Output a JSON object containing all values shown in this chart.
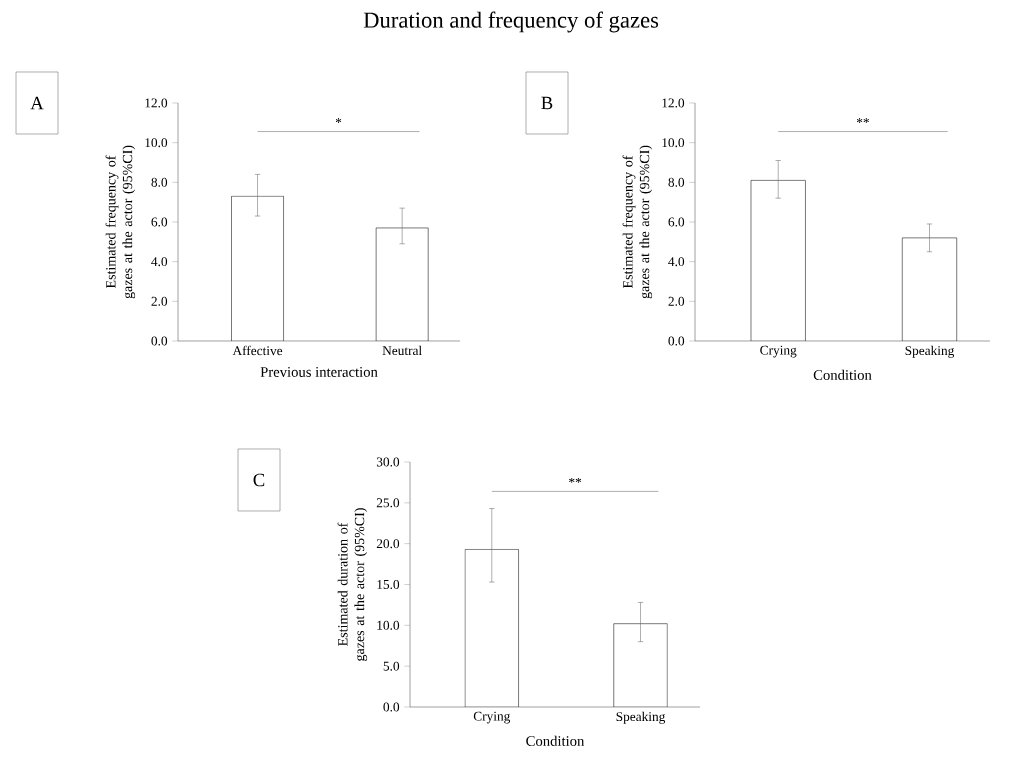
{
  "chart_data": [
    {
      "type": "bar",
      "title": "Duration and frequency of gazes",
      "categories": [
        "Affective",
        "Neutral"
      ],
      "values": [
        7.3,
        5.7
      ],
      "errors": [
        [
          6.3,
          8.4
        ],
        [
          4.9,
          6.7
        ]
      ],
      "color": "#ffffff",
      "xlabel": "Previous interaction",
      "ylabel": "Estimated frequency of gazes at the actor (95%CI)",
      "ylim": [
        0,
        12
      ],
      "yticks": [
        {
          "value": 0,
          "label": "0.0"
        },
        {
          "value": 2,
          "label": "2.0"
        },
        {
          "value": 4,
          "label": "4.0"
        },
        {
          "value": 6,
          "label": "6.0"
        },
        {
          "value": 8,
          "label": "8.0"
        },
        {
          "value": 10,
          "label": "10.0"
        },
        {
          "value": 12,
          "label": "12.0"
        }
      ],
      "annotations": [
        "A",
        "*"
      ]
    },
    {
      "type": "bar",
      "categories": [
        "Crying",
        "Speaking"
      ],
      "values": [
        8.1,
        5.2
      ],
      "errors": [
        [
          7.2,
          9.1
        ],
        [
          4.5,
          5.9
        ]
      ],
      "color": "#ffffff",
      "xlabel": "Condition",
      "ylabel": "Estimated frequency of gazes at the actor (95%CI)",
      "ylim": [
        0,
        12
      ],
      "yticks": [
        {
          "value": 0,
          "label": "0.0"
        },
        {
          "value": 2,
          "label": "2.0"
        },
        {
          "value": 4,
          "label": "4.0"
        },
        {
          "value": 6,
          "label": "6.0"
        },
        {
          "value": 8,
          "label": "8.0"
        },
        {
          "value": 10,
          "label": "10.0"
        },
        {
          "value": 12,
          "label": "12.0"
        }
      ],
      "annotations": [
        "B",
        "**"
      ]
    },
    {
      "type": "bar",
      "categories": [
        "Crying",
        "Speaking"
      ],
      "values": [
        19.3,
        10.2
      ],
      "errors": [
        [
          15.3,
          24.3
        ],
        [
          8.0,
          12.8
        ]
      ],
      "color": "#ffffff",
      "xlabel": "Condition",
      "ylabel": "Estimated duration of gazes at the actor (95%CI)",
      "ylim": [
        0,
        30
      ],
      "yticks": [
        {
          "value": 0,
          "label": "0.0"
        },
        {
          "value": 5,
          "label": "5.0"
        },
        {
          "value": 10,
          "label": "10.0"
        },
        {
          "value": 15,
          "label": "15.0"
        },
        {
          "value": 20,
          "label": "20.0"
        },
        {
          "value": 25,
          "label": "25.0"
        },
        {
          "value": 30,
          "label": "30.0"
        }
      ],
      "annotations": [
        "C",
        "**"
      ]
    }
  ]
}
